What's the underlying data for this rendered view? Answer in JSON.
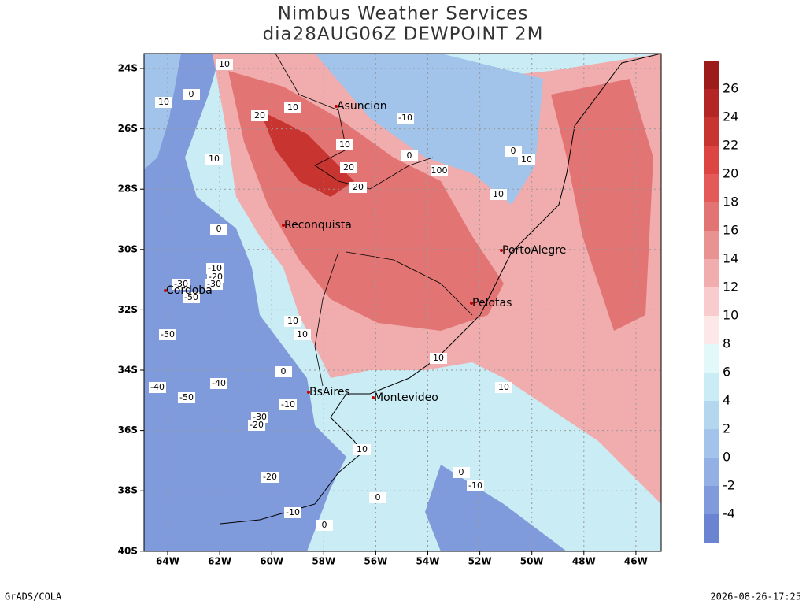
{
  "header": {
    "title": "Nimbus Weather Services",
    "subtitle": "dia28AUG06Z DEWPOINT 2M"
  },
  "map": {
    "lat_ticks": [
      {
        "value": -24,
        "label": "24S"
      },
      {
        "value": -26,
        "label": "26S"
      },
      {
        "value": -28,
        "label": "28S"
      },
      {
        "value": -30,
        "label": "30S"
      },
      {
        "value": -32,
        "label": "32S"
      },
      {
        "value": -34,
        "label": "34S"
      },
      {
        "value": -36,
        "label": "36S"
      },
      {
        "value": -38,
        "label": "38S"
      },
      {
        "value": -40,
        "label": "40S"
      }
    ],
    "lon_ticks": [
      {
        "value": -64,
        "label": "64W"
      },
      {
        "value": -62,
        "label": "62W"
      },
      {
        "value": -60,
        "label": "60W"
      },
      {
        "value": -58,
        "label": "58W"
      },
      {
        "value": -56,
        "label": "56W"
      },
      {
        "value": -54,
        "label": "54W"
      },
      {
        "value": -52,
        "label": "52W"
      },
      {
        "value": -50,
        "label": "50W"
      },
      {
        "value": -48,
        "label": "48W"
      },
      {
        "value": -46,
        "label": "46W"
      }
    ],
    "cities": [
      "Asuncion",
      "Reconquista",
      "Cordoba",
      "PortoAlegre",
      "Pelotas",
      "BsAires",
      "Montevideo"
    ],
    "contour_labels": [
      "10",
      "0",
      "10",
      "20",
      "10",
      "-10",
      "10",
      "20",
      "10",
      "20",
      "0",
      "100",
      "0",
      "10",
      "10",
      "0",
      "-10",
      "-20",
      "-30",
      "-30",
      "-50",
      "10",
      "10",
      "-50",
      "0",
      "-40",
      "-40",
      "-50",
      "-10",
      "-30",
      "-20",
      "10",
      "10",
      "10",
      "-20",
      "0",
      "-10",
      "0",
      "-10",
      "0"
    ]
  },
  "colorbar": {
    "levels": [
      26,
      24,
      22,
      20,
      18,
      16,
      14,
      12,
      10,
      8,
      6,
      4,
      2,
      0,
      -2,
      -4
    ],
    "colors": [
      "#9c1c1c",
      "#b42626",
      "#c8342f",
      "#dc4542",
      "#e45a58",
      "#e27574",
      "#e99292",
      "#f1adad",
      "#f8cccc",
      "#fde8e8",
      "#e2f8fb",
      "#c9ecf5",
      "#b2d7ef",
      "#a2c3ea",
      "#92b0e3",
      "#7f9bdc",
      "#6b84d2"
    ]
  },
  "footer": {
    "left": "GrADS/COLA",
    "right": "2026-08-26-17:25"
  }
}
